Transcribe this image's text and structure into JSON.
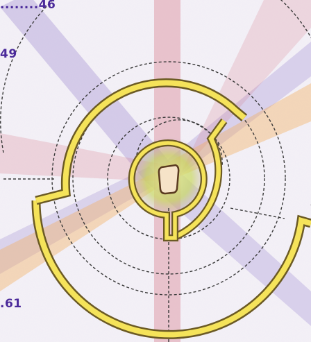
{
  "scores": {
    "top": "........46",
    "mid": "49",
    "bottom": ".61"
  },
  "colors": {
    "background": "#f3f0f6",
    "ring_outline": "#6b5a24",
    "ring_fill": "#f5e35a",
    "dashed_track": "#3a3a3a",
    "beam_red": "#d87a8a",
    "beam_purple": "#9a88cf",
    "beam_orange": "#f2b060",
    "hud_text": "#4b2a9a",
    "player_fill": "#f6e3c8",
    "player_outline": "#5a3a20",
    "core_glow": "#cfe06a"
  },
  "icons": {
    "player": "player-token-icon",
    "core": "maze-core-icon"
  }
}
